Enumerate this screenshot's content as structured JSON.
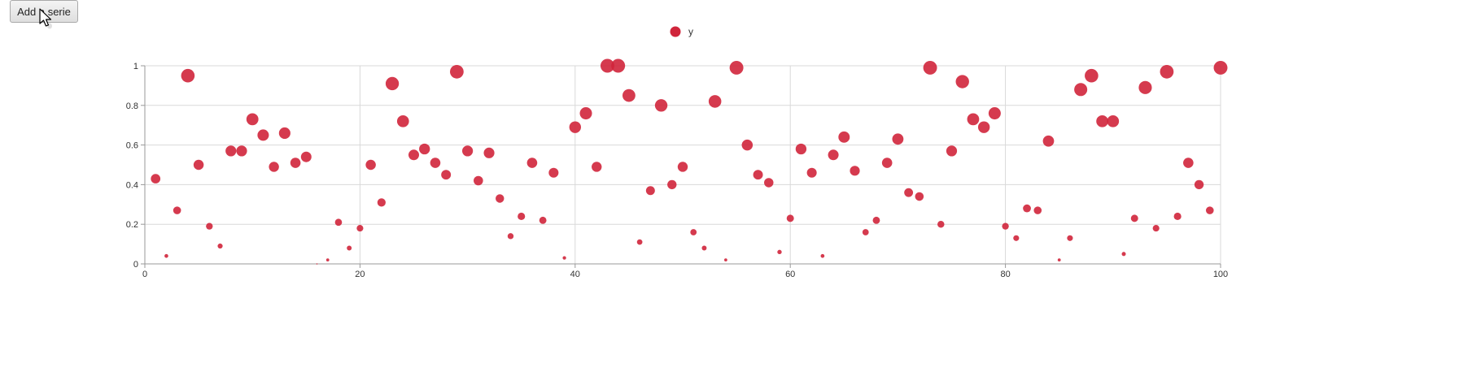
{
  "toolbar": {
    "add_serie_label": "Add a serie"
  },
  "chart_data": {
    "type": "scatter",
    "title": "",
    "xlabel": "",
    "ylabel": "",
    "xlim": [
      0,
      100
    ],
    "ylim": [
      0,
      1
    ],
    "x_ticks": [
      "0",
      "20",
      "40",
      "60",
      "80",
      "100"
    ],
    "y_ticks": [
      "0",
      "0.2",
      "0.4",
      "0.6",
      "0.8",
      "1"
    ],
    "grid": true,
    "legend_position": "top-center",
    "series": [
      {
        "name": "y",
        "color": "#d0253b",
        "x": [
          1,
          2,
          3,
          4,
          5,
          6,
          7,
          8,
          9,
          10,
          11,
          12,
          13,
          14,
          15,
          16,
          17,
          18,
          19,
          20,
          21,
          22,
          23,
          24,
          25,
          26,
          27,
          28,
          29,
          30,
          31,
          32,
          33,
          34,
          35,
          36,
          37,
          38,
          39,
          40,
          41,
          42,
          43,
          44,
          45,
          46,
          47,
          48,
          49,
          50,
          51,
          52,
          53,
          54,
          55,
          56,
          57,
          58,
          59,
          60,
          61,
          62,
          63,
          64,
          65,
          66,
          67,
          68,
          69,
          70,
          71,
          72,
          73,
          74,
          75,
          76,
          77,
          78,
          79,
          80,
          81,
          82,
          83,
          84,
          85,
          86,
          87,
          88,
          89,
          90,
          91,
          92,
          93,
          94,
          95,
          96,
          97,
          98,
          99,
          100
        ],
        "y": [
          0.43,
          0.04,
          0.27,
          0.95,
          0.5,
          0.19,
          0.09,
          0.57,
          0.57,
          0.73,
          0.65,
          0.49,
          0.66,
          0.51,
          0.54,
          0.0,
          0.02,
          0.21,
          0.08,
          0.18,
          0.5,
          0.31,
          0.91,
          0.72,
          0.55,
          0.58,
          0.51,
          0.45,
          0.97,
          0.57,
          0.42,
          0.56,
          0.33,
          0.14,
          0.24,
          0.51,
          0.22,
          0.46,
          0.03,
          0.69,
          0.76,
          0.49,
          1.0,
          1.0,
          0.85,
          0.11,
          0.37,
          0.8,
          0.4,
          0.49,
          0.16,
          0.08,
          0.82,
          0.02,
          0.99,
          0.6,
          0.45,
          0.41,
          0.06,
          0.23,
          0.58,
          0.46,
          0.04,
          0.55,
          0.64,
          0.47,
          0.16,
          0.22,
          0.51,
          0.63,
          0.36,
          0.34,
          0.99,
          0.2,
          0.57,
          0.92,
          0.73,
          0.69,
          0.76,
          0.19,
          0.13,
          0.28,
          0.27,
          0.62,
          0.02,
          0.13,
          0.88,
          0.95,
          0.72,
          0.72,
          0.05,
          0.23,
          0.89,
          0.18,
          0.97,
          0.24,
          0.51,
          0.4,
          0.27,
          0.99
        ],
        "size": [
          0.43,
          0.04,
          0.27,
          0.95,
          0.5,
          0.19,
          0.09,
          0.57,
          0.57,
          0.73,
          0.65,
          0.49,
          0.66,
          0.51,
          0.54,
          0.0,
          0.02,
          0.21,
          0.08,
          0.18,
          0.5,
          0.31,
          0.91,
          0.72,
          0.55,
          0.58,
          0.51,
          0.45,
          0.97,
          0.57,
          0.42,
          0.56,
          0.33,
          0.14,
          0.24,
          0.51,
          0.22,
          0.46,
          0.03,
          0.69,
          0.76,
          0.49,
          1.0,
          1.0,
          0.85,
          0.11,
          0.37,
          0.8,
          0.4,
          0.49,
          0.16,
          0.08,
          0.82,
          0.02,
          0.99,
          0.6,
          0.45,
          0.41,
          0.06,
          0.23,
          0.58,
          0.46,
          0.04,
          0.55,
          0.64,
          0.47,
          0.16,
          0.22,
          0.51,
          0.63,
          0.36,
          0.34,
          0.99,
          0.2,
          0.57,
          0.92,
          0.73,
          0.69,
          0.76,
          0.19,
          0.13,
          0.28,
          0.27,
          0.62,
          0.02,
          0.13,
          0.88,
          0.95,
          0.72,
          0.72,
          0.05,
          0.23,
          0.89,
          0.18,
          0.97,
          0.24,
          0.51,
          0.4,
          0.27,
          0.99
        ]
      }
    ]
  }
}
